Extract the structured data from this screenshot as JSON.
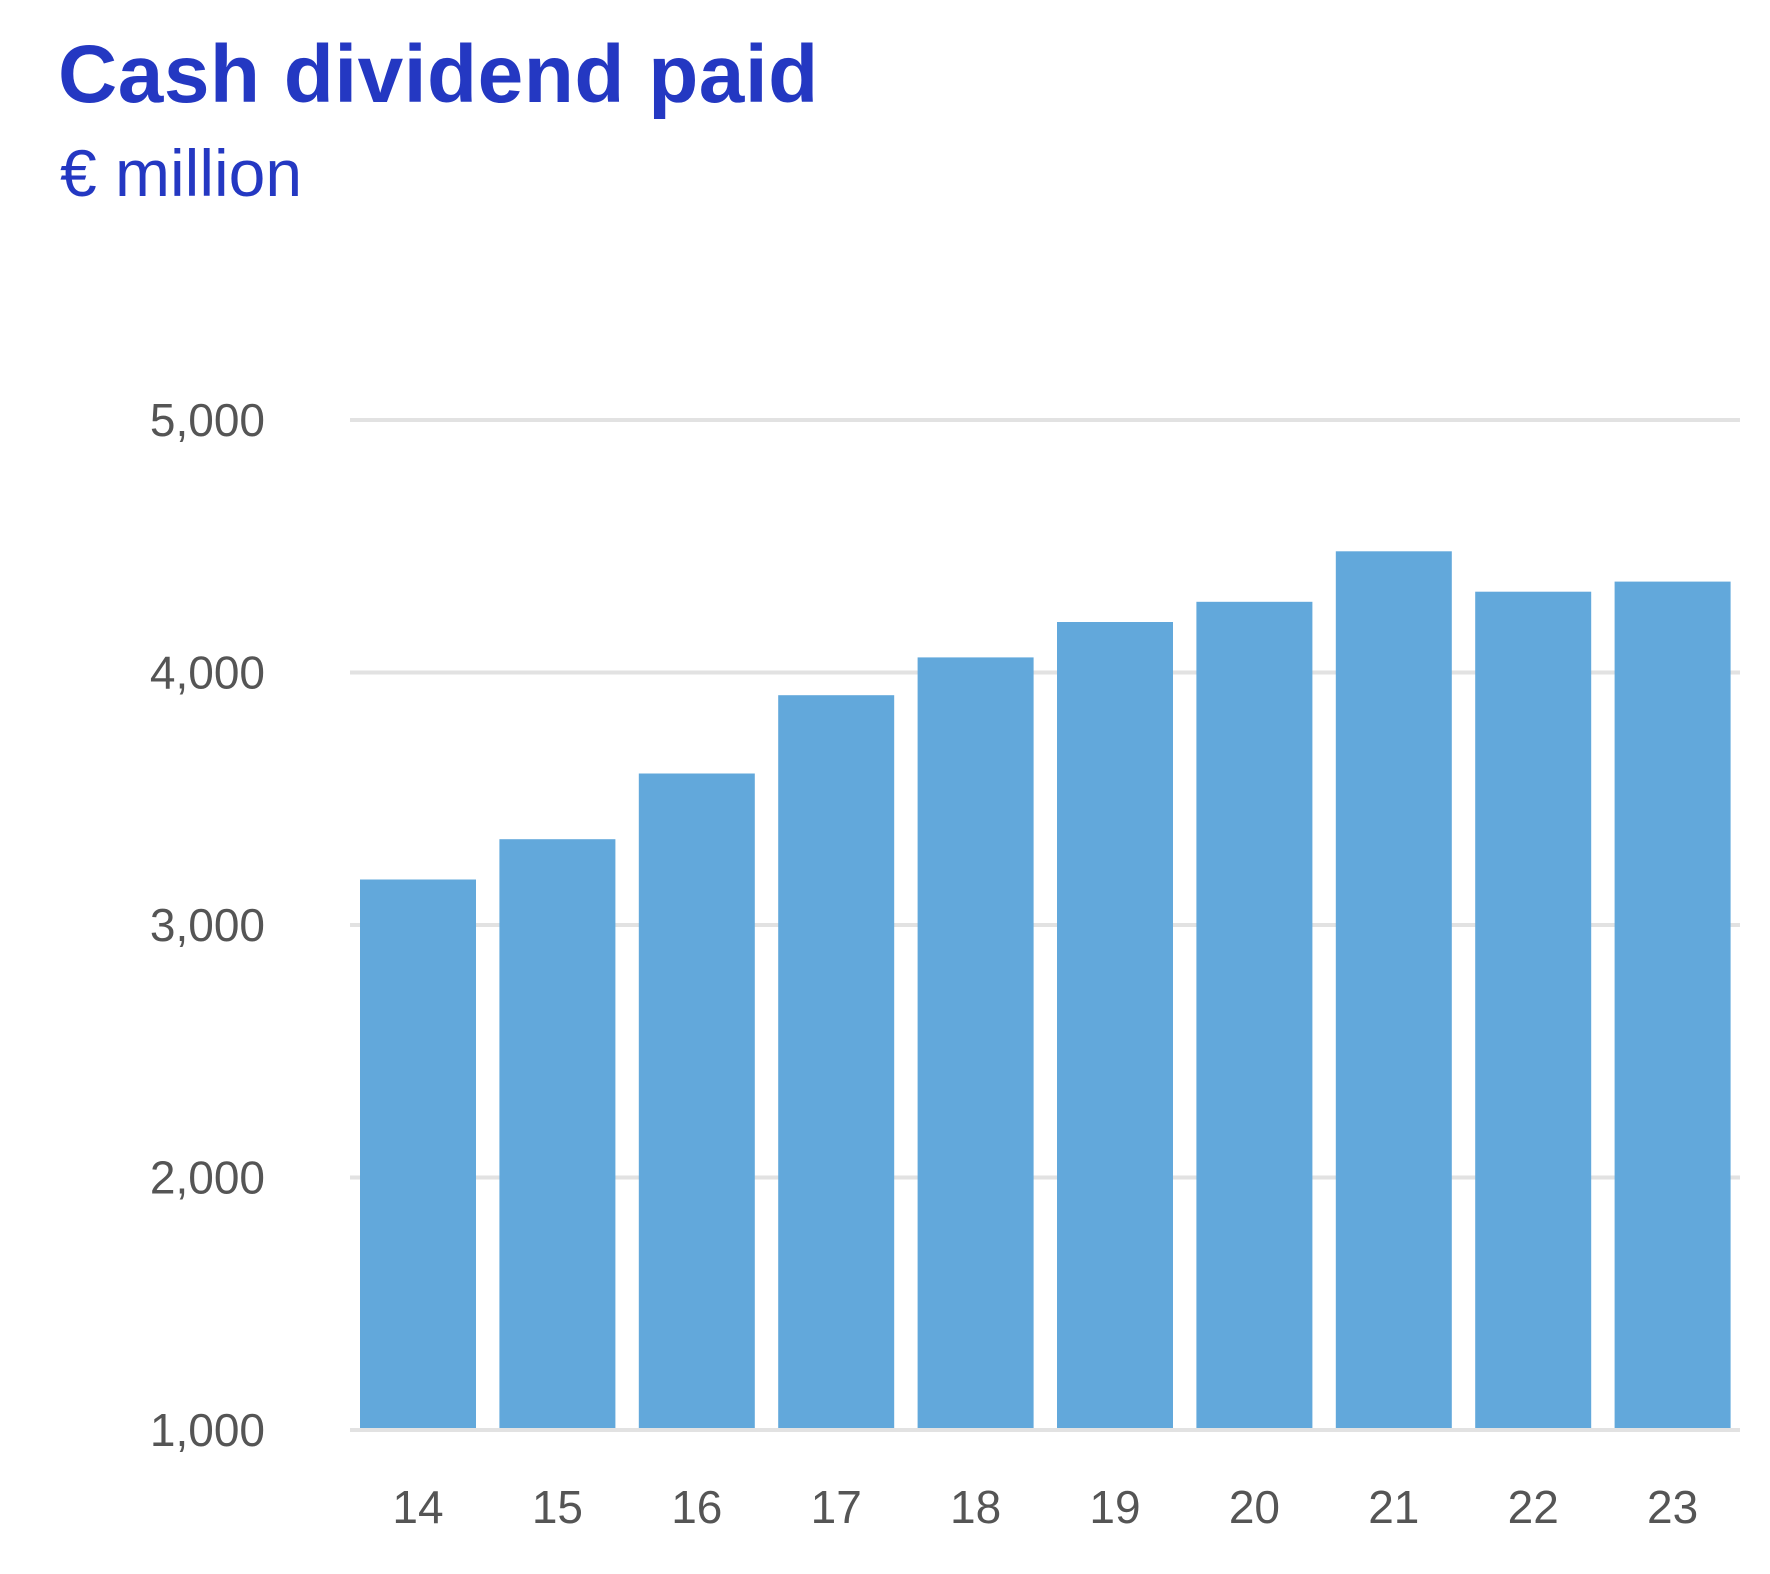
{
  "chart_data": {
    "type": "bar",
    "title": "Cash dividend paid",
    "subtitle": "€ million",
    "xlabel": "",
    "ylabel": "",
    "categories": [
      "14",
      "15",
      "16",
      "17",
      "18",
      "19",
      "20",
      "21",
      "22",
      "23"
    ],
    "values": [
      3180,
      3340,
      3600,
      3910,
      4060,
      4200,
      4280,
      4480,
      4320,
      4360
    ],
    "ylim": [
      1000,
      5000
    ],
    "yticks": [
      1000,
      2000,
      3000,
      4000,
      5000
    ],
    "ytick_labels": [
      "1,000",
      "2,000",
      "3,000",
      "4,000",
      "5,000"
    ],
    "grid": true,
    "legend": "none",
    "colors": {
      "bar": "#62a8db",
      "title": "#2438c2",
      "grid": "#e2e2e2",
      "tick_text": "#555555"
    }
  }
}
